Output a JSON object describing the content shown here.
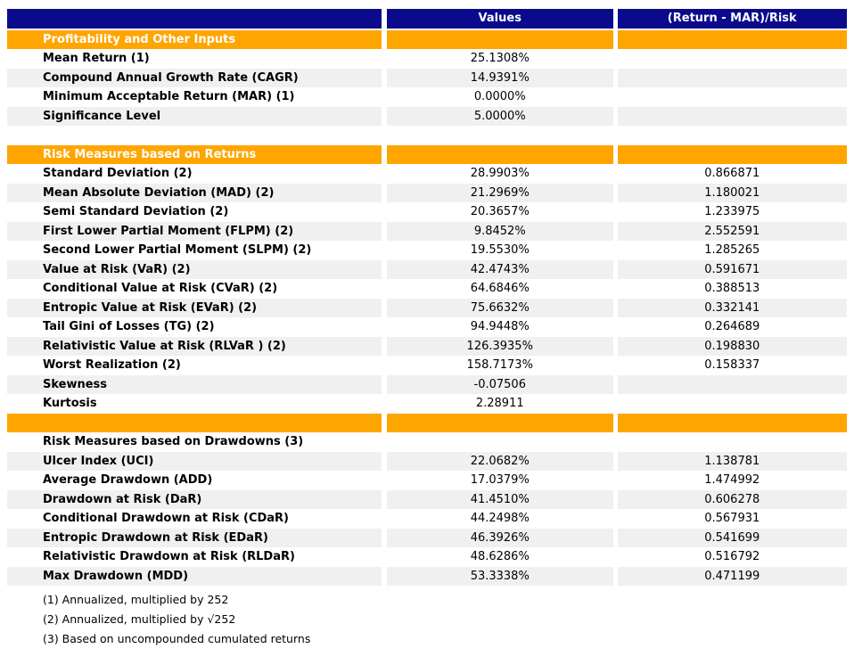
{
  "colors": {
    "header_bg": "#0a0a8c",
    "section_bg": "#ffa500",
    "stripe_bg": "#f0f0f0",
    "header_text": "#ffffff"
  },
  "chart_data": {
    "type": "table",
    "header": {
      "metric": "",
      "values": "Values",
      "ratio": "(Return - MAR)/Risk"
    },
    "rows": [
      {
        "type": "section",
        "label": "Profitability and Other Inputs",
        "value": "",
        "ratio": ""
      },
      {
        "type": "data",
        "label": "Mean Return (1)",
        "value": "25.1308%",
        "ratio": ""
      },
      {
        "type": "data",
        "label": "Compound Annual Growth Rate (CAGR)",
        "value": "14.9391%",
        "ratio": ""
      },
      {
        "type": "data",
        "label": "Minimum Acceptable Return (MAR) (1)",
        "value": "0.0000%",
        "ratio": ""
      },
      {
        "type": "data",
        "label": "Significance Level",
        "value": "5.0000%",
        "ratio": ""
      },
      {
        "type": "spacer",
        "label": "",
        "value": "",
        "ratio": ""
      },
      {
        "type": "section",
        "label": "Risk Measures based on Returns",
        "value": "",
        "ratio": ""
      },
      {
        "type": "data",
        "label": "Standard Deviation (2)",
        "value": "28.9903%",
        "ratio": "0.866871"
      },
      {
        "type": "data",
        "label": "Mean Absolute Deviation (MAD) (2)",
        "value": "21.2969%",
        "ratio": "1.180021"
      },
      {
        "type": "data",
        "label": "Semi Standard Deviation (2)",
        "value": "20.3657%",
        "ratio": "1.233975"
      },
      {
        "type": "data",
        "label": "First Lower Partial Moment (FLPM) (2)",
        "value": "9.8452%",
        "ratio": "2.552591"
      },
      {
        "type": "data",
        "label": "Second Lower Partial Moment (SLPM) (2)",
        "value": "19.5530%",
        "ratio": "1.285265"
      },
      {
        "type": "data",
        "label": "Value at Risk (VaR) (2)",
        "value": "42.4743%",
        "ratio": "0.591671"
      },
      {
        "type": "data",
        "label": "Conditional Value at Risk (CVaR) (2)",
        "value": "64.6846%",
        "ratio": "0.388513"
      },
      {
        "type": "data",
        "label": "Entropic Value at Risk (EVaR) (2)",
        "value": "75.6632%",
        "ratio": "0.332141"
      },
      {
        "type": "data",
        "label": "Tail Gini of Losses (TG) (2)",
        "value": "94.9448%",
        "ratio": "0.264689"
      },
      {
        "type": "data",
        "label": "Relativistic Value at Risk (RLVaR ) (2)",
        "value": "126.3935%",
        "ratio": "0.198830"
      },
      {
        "type": "data",
        "label": "Worst Realization (2)",
        "value": "158.7173%",
        "ratio": "0.158337"
      },
      {
        "type": "data",
        "label": "Skewness",
        "value": "-0.07506",
        "ratio": ""
      },
      {
        "type": "data",
        "label": "Kurtosis",
        "value": "2.28911",
        "ratio": ""
      },
      {
        "type": "section",
        "label": "",
        "value": "",
        "ratio": ""
      },
      {
        "type": "subheader",
        "label": "Risk Measures based on Drawdowns (3)",
        "value": "",
        "ratio": ""
      },
      {
        "type": "data",
        "label": "Ulcer Index (UCI)",
        "value": "22.0682%",
        "ratio": "1.138781"
      },
      {
        "type": "data",
        "label": "Average Drawdown (ADD)",
        "value": "17.0379%",
        "ratio": "1.474992"
      },
      {
        "type": "data",
        "label": "Drawdown at Risk (DaR)",
        "value": "41.4510%",
        "ratio": "0.606278"
      },
      {
        "type": "data",
        "label": "Conditional Drawdown at Risk (CDaR)",
        "value": "44.2498%",
        "ratio": "0.567931"
      },
      {
        "type": "data",
        "label": "Entropic Drawdown at Risk (EDaR)",
        "value": "46.3926%",
        "ratio": "0.541699"
      },
      {
        "type": "data",
        "label": "Relativistic Drawdown at Risk (RLDaR)",
        "value": "48.6286%",
        "ratio": "0.516792"
      },
      {
        "type": "data",
        "label": "Max Drawdown (MDD)",
        "value": "53.3338%",
        "ratio": "0.471199"
      }
    ],
    "footnotes": [
      "(1) Annualized, multiplied by 252",
      "(2) Annualized, multiplied by √252",
      "(3) Based on uncompounded cumulated returns"
    ]
  }
}
